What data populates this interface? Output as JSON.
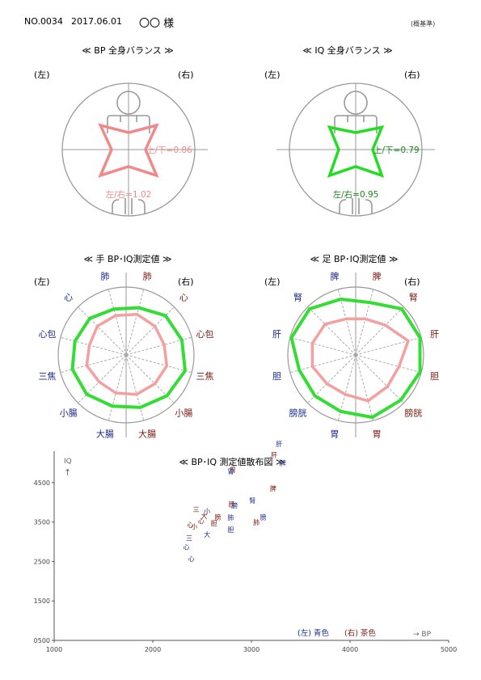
{
  "header": {
    "number": "NO.0034",
    "date": "2017.06.01",
    "name": "〇〇 様",
    "note": "(概基準)"
  },
  "colors": {
    "bp_line": "#f08a8a",
    "iq_line": "#22dd22",
    "left_text": "#1a2a90",
    "right_text": "#7a1a10",
    "radar_inner": "#f4a0a0",
    "radar_outer": "#33dd33",
    "grid": "#999999"
  },
  "panels": {
    "bp_balance": {
      "title": "≪ BP 全身バランス ≫",
      "left_label": "(左)",
      "right_label": "(右)",
      "ratio_ud": "上/下=0.86",
      "ratio_lr": "左/右=1.02",
      "ud_value": 0.86,
      "lr_value": 1.02
    },
    "iq_balance": {
      "title": "≪ IQ 全身バランス ≫",
      "left_label": "(左)",
      "right_label": "(右)",
      "ratio_ud": "上/下=0.79",
      "ratio_lr": "左/右=0.95",
      "ud_value": 0.79,
      "lr_value": 0.95
    },
    "hand_radar": {
      "title": "≪ 手 BP･IQ測定値 ≫",
      "left_label": "(左)",
      "right_label": "(右)"
    },
    "foot_radar": {
      "title": "≪ 足 BP･IQ測定値 ≫",
      "left_label": "(左)",
      "right_label": "(右)"
    }
  },
  "chart_data": [
    {
      "type": "radar",
      "panel": "hand",
      "axes": [
        {
          "label": "肺",
          "side": "right"
        },
        {
          "label": "心",
          "side": "right"
        },
        {
          "label": "心包",
          "side": "right"
        },
        {
          "label": "三焦",
          "side": "right"
        },
        {
          "label": "小腸",
          "side": "right"
        },
        {
          "label": "大腸",
          "side": "right"
        },
        {
          "label": "大腸",
          "side": "left"
        },
        {
          "label": "小腸",
          "side": "left"
        },
        {
          "label": "三焦",
          "side": "left"
        },
        {
          "label": "心包",
          "side": "left"
        },
        {
          "label": "心",
          "side": "left"
        },
        {
          "label": "肺",
          "side": "left"
        }
      ],
      "series": [
        {
          "values": [
            0.62,
            0.6,
            0.58,
            0.62,
            0.6,
            0.6,
            0.58,
            0.56,
            0.6,
            0.56,
            0.6,
            0.6
          ]
        },
        {
          "values": [
            0.72,
            0.82,
            0.85,
            0.9,
            0.85,
            0.8,
            0.78,
            0.82,
            0.82,
            0.78,
            0.76,
            0.7
          ]
        }
      ]
    },
    {
      "type": "radar",
      "panel": "foot",
      "axes": [
        {
          "label": "脾",
          "side": "right"
        },
        {
          "label": "腎",
          "side": "right"
        },
        {
          "label": "肝",
          "side": "right"
        },
        {
          "label": "胆",
          "side": "right"
        },
        {
          "label": "膀胱",
          "side": "right"
        },
        {
          "label": "胃",
          "side": "right"
        },
        {
          "label": "胃",
          "side": "left"
        },
        {
          "label": "膀胱",
          "side": "left"
        },
        {
          "label": "胆",
          "side": "left"
        },
        {
          "label": "肝",
          "side": "left"
        },
        {
          "label": "腎",
          "side": "left"
        },
        {
          "label": "脾",
          "side": "left"
        }
      ],
      "series": [
        {
          "values": [
            0.55,
            0.62,
            0.8,
            0.66,
            0.66,
            0.7,
            0.6,
            0.6,
            0.66,
            0.66,
            0.64,
            0.55
          ]
        },
        {
          "values": [
            0.8,
            0.96,
            0.98,
            0.98,
            0.94,
            0.95,
            0.86,
            0.85,
            0.86,
            0.98,
            0.96,
            0.85
          ]
        }
      ]
    },
    {
      "type": "scatter",
      "title": "≪ BP･IQ 測定値散布図 ≫",
      "xlabel": "→ BP",
      "ylabel": "IQ",
      "y_arrow": "↑",
      "xlim": [
        1000,
        5000
      ],
      "ylim": [
        500,
        5500
      ],
      "xticks": [
        1000,
        2000,
        3000,
        4000,
        5000
      ],
      "yticks": [
        500,
        1500,
        2500,
        3500,
        4500
      ],
      "ytick_labels": [
        "0500",
        "1500",
        "2500",
        "3500",
        "4500"
      ],
      "legend": [
        {
          "label": "(左) 青色",
          "side": "left"
        },
        {
          "label": "(右) 茶色",
          "side": "right"
        }
      ],
      "points": [
        {
          "x": 3280,
          "y": 5480,
          "label": "肝",
          "side": "left"
        },
        {
          "x": 3230,
          "y": 5200,
          "label": "肝",
          "side": "right"
        },
        {
          "x": 3320,
          "y": 5000,
          "label": "脾",
          "side": "left"
        },
        {
          "x": 2810,
          "y": 4820,
          "label": "胃",
          "side": "right"
        },
        {
          "x": 2790,
          "y": 4780,
          "label": "胃",
          "side": "left"
        },
        {
          "x": 3220,
          "y": 4350,
          "label": "脾",
          "side": "right"
        },
        {
          "x": 3010,
          "y": 4050,
          "label": "腎",
          "side": "left"
        },
        {
          "x": 2800,
          "y": 3950,
          "label": "膀",
          "side": "right"
        },
        {
          "x": 2830,
          "y": 3920,
          "label": "膀",
          "side": "left"
        },
        {
          "x": 2440,
          "y": 3820,
          "label": "三",
          "side": "right"
        },
        {
          "x": 2550,
          "y": 3780,
          "label": "小",
          "side": "left"
        },
        {
          "x": 3120,
          "y": 3630,
          "label": "膀",
          "side": "left"
        },
        {
          "x": 2660,
          "y": 3630,
          "label": "膀",
          "side": "right"
        },
        {
          "x": 2520,
          "y": 3660,
          "label": "大",
          "side": "right"
        },
        {
          "x": 2490,
          "y": 3520,
          "label": "心",
          "side": "right"
        },
        {
          "x": 2790,
          "y": 3610,
          "label": "肺",
          "side": "left"
        },
        {
          "x": 3050,
          "y": 3490,
          "label": "肺",
          "side": "right"
        },
        {
          "x": 2620,
          "y": 3470,
          "label": "胆",
          "side": "right"
        },
        {
          "x": 2790,
          "y": 3310,
          "label": "胆",
          "side": "left"
        },
        {
          "x": 2380,
          "y": 3430,
          "label": "心",
          "side": "right"
        },
        {
          "x": 2420,
          "y": 3390,
          "label": "小",
          "side": "right"
        },
        {
          "x": 2370,
          "y": 3090,
          "label": "三",
          "side": "left"
        },
        {
          "x": 2550,
          "y": 3180,
          "label": "大",
          "side": "left"
        },
        {
          "x": 2340,
          "y": 2870,
          "label": "心",
          "side": "left"
        },
        {
          "x": 2390,
          "y": 2570,
          "label": "心",
          "side": "left"
        }
      ]
    }
  ]
}
